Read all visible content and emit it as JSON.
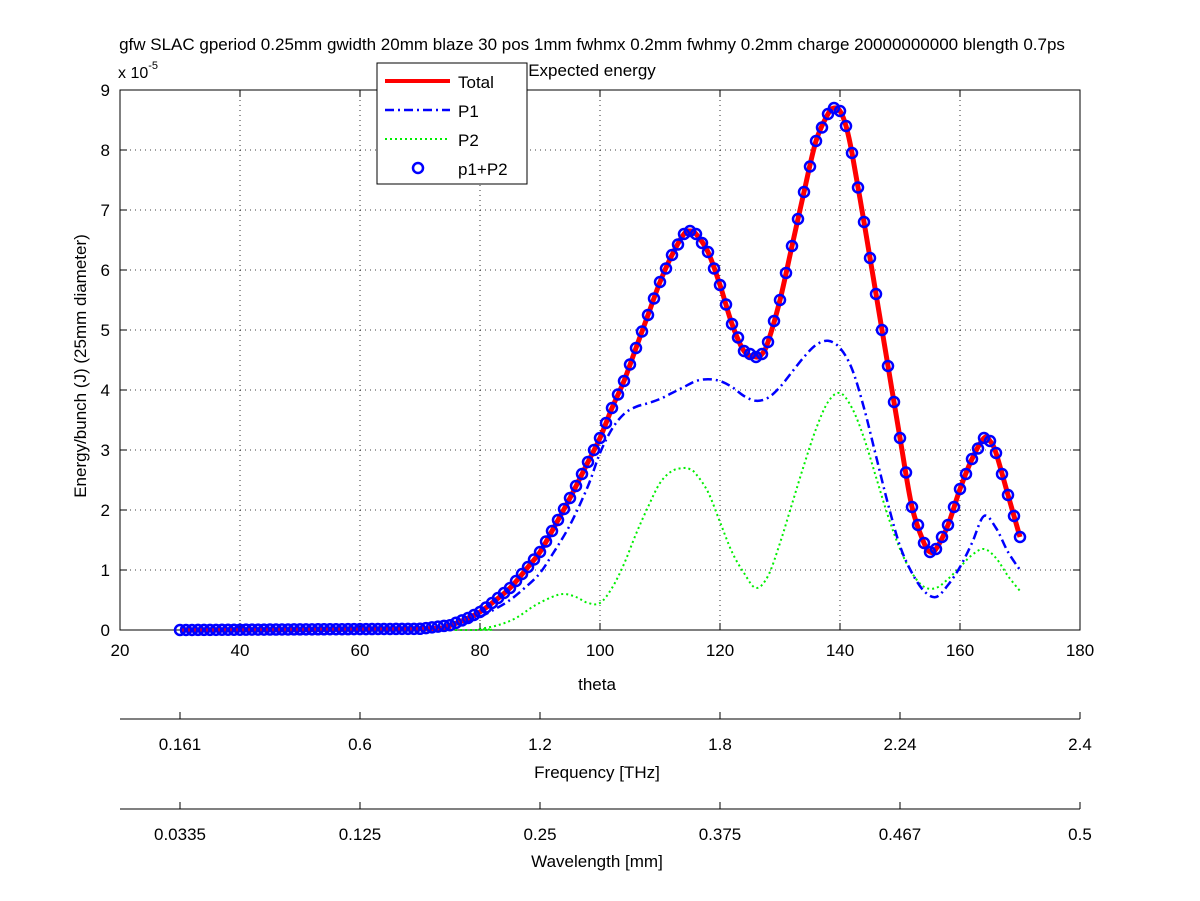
{
  "figure": {
    "title_line1": "gfw SLAC gperiod 0.25mm gwidth 20mm blaze 30 pos 1mm fwhmx 0.2mm fwhmy 0.2mm charge 20000000000 blength 0.7ps",
    "title_line2": "Expected energy",
    "y_exponent_base": "x 10",
    "y_exponent_power": "-5",
    "ylabel": "Energy/bunch (J) (25mm diameter)",
    "xlabel": "theta",
    "freq_axis_label": "Frequency [THz]",
    "wave_axis_label": "Wavelength [mm]",
    "freq_ticks": [
      {
        "theta": 30,
        "label": "0.161"
      },
      {
        "theta": 60,
        "label": "0.6"
      },
      {
        "theta": 90,
        "label": "1.2"
      },
      {
        "theta": 120,
        "label": "1.8"
      },
      {
        "theta": 150,
        "label": "2.24"
      },
      {
        "theta": 180,
        "label": "2.4"
      }
    ],
    "wave_ticks": [
      {
        "theta": 30,
        "label": "0.0335"
      },
      {
        "theta": 60,
        "label": "0.125"
      },
      {
        "theta": 90,
        "label": "0.25"
      },
      {
        "theta": 120,
        "label": "0.375"
      },
      {
        "theta": 150,
        "label": "0.467"
      },
      {
        "theta": 180,
        "label": "0.5"
      }
    ],
    "colors": {
      "total": "#ff0000",
      "p1": "#0000ff",
      "p2": "#00ee00",
      "markers": "#0000ff"
    }
  },
  "chart_data": {
    "type": "line",
    "title": "gfw SLAC gperiod 0.25mm gwidth 20mm blaze 30 pos 1mm fwhmx 0.2mm fwhmy 0.2mm charge 20000000000 blength 0.7ps Expected energy",
    "xlabel": "theta",
    "ylabel": "Energy/bunch (J) (25mm diameter)",
    "y_scale_note": "x 10^-5",
    "xlim": [
      20,
      180
    ],
    "ylim": [
      0,
      9
    ],
    "x_ticks": [
      20,
      40,
      60,
      80,
      100,
      120,
      140,
      160,
      180
    ],
    "y_ticks": [
      0,
      1,
      2,
      3,
      4,
      5,
      6,
      7,
      8,
      9
    ],
    "grid": true,
    "legend_position": "top-center",
    "series": [
      {
        "name": "Total",
        "style": "solid-thick",
        "x": [
          30,
          70,
          75,
          78,
          80,
          82,
          85,
          88,
          90,
          92,
          95,
          98,
          100,
          102,
          104,
          106,
          108,
          110,
          112,
          114,
          115,
          116,
          118,
          120,
          122,
          124,
          126,
          127,
          128,
          130,
          132,
          134,
          136,
          138,
          139,
          140,
          141,
          142,
          144,
          146,
          148,
          150,
          152,
          154,
          155,
          156,
          158,
          160,
          162,
          164,
          165,
          166,
          168,
          170
        ],
        "y": [
          0,
          0.02,
          0.08,
          0.2,
          0.3,
          0.45,
          0.7,
          1.05,
          1.3,
          1.65,
          2.2,
          2.8,
          3.2,
          3.7,
          4.15,
          4.7,
          5.25,
          5.8,
          6.25,
          6.6,
          6.65,
          6.6,
          6.3,
          5.75,
          5.1,
          4.65,
          4.55,
          4.6,
          4.8,
          5.5,
          6.4,
          7.3,
          8.15,
          8.6,
          8.7,
          8.65,
          8.4,
          7.95,
          6.8,
          5.6,
          4.4,
          3.2,
          2.05,
          1.45,
          1.3,
          1.35,
          1.75,
          2.35,
          2.85,
          3.2,
          3.15,
          2.95,
          2.25,
          1.55
        ]
      },
      {
        "name": "P1",
        "style": "dash-dot",
        "x": [
          30,
          70,
          75,
          78,
          80,
          82,
          85,
          88,
          90,
          92,
          95,
          98,
          100,
          102,
          104,
          106,
          108,
          110,
          112,
          114,
          116,
          118,
          120,
          122,
          124,
          126,
          128,
          130,
          132,
          134,
          136,
          138,
          140,
          142,
          144,
          146,
          148,
          150,
          152,
          154,
          156,
          158,
          160,
          162,
          164,
          166,
          168,
          170
        ],
        "y": [
          0,
          0.02,
          0.07,
          0.15,
          0.22,
          0.32,
          0.5,
          0.75,
          0.95,
          1.25,
          1.75,
          2.4,
          2.95,
          3.35,
          3.6,
          3.72,
          3.78,
          3.85,
          3.95,
          4.05,
          4.15,
          4.18,
          4.15,
          4.05,
          3.9,
          3.82,
          3.87,
          4.05,
          4.3,
          4.55,
          4.75,
          4.82,
          4.7,
          4.35,
          3.7,
          2.9,
          2.1,
          1.4,
          0.95,
          0.65,
          0.55,
          0.75,
          1.05,
          1.45,
          1.9,
          1.7,
          1.3,
          1.0
        ]
      },
      {
        "name": "P2",
        "style": "dotted",
        "x": [
          30,
          78,
          80,
          83,
          86,
          89,
          92,
          94,
          96,
          98,
          100,
          102,
          104,
          106,
          108,
          110,
          112,
          114,
          115,
          116,
          118,
          120,
          122,
          124,
          126,
          128,
          130,
          132,
          134,
          136,
          138,
          140,
          142,
          144,
          146,
          148,
          150,
          152,
          154,
          156,
          158,
          160,
          162,
          164,
          166,
          168,
          170
        ],
        "y": [
          0,
          0,
          0.02,
          0.08,
          0.2,
          0.4,
          0.55,
          0.6,
          0.55,
          0.45,
          0.45,
          0.7,
          1.1,
          1.6,
          2.05,
          2.45,
          2.65,
          2.7,
          2.68,
          2.6,
          2.3,
          1.8,
          1.3,
          0.95,
          0.7,
          0.9,
          1.45,
          2.1,
          2.75,
          3.35,
          3.8,
          3.95,
          3.7,
          3.2,
          2.55,
          1.9,
          1.35,
          0.95,
          0.72,
          0.7,
          0.85,
          1.05,
          1.25,
          1.35,
          1.2,
          0.9,
          0.65
        ]
      },
      {
        "name": "p1+P2",
        "style": "circle-markers",
        "x_start": 30,
        "x_end": 170,
        "x_step": 1,
        "note": "markers at every integer theta from 30 to 170 following the Total curve"
      }
    ]
  }
}
